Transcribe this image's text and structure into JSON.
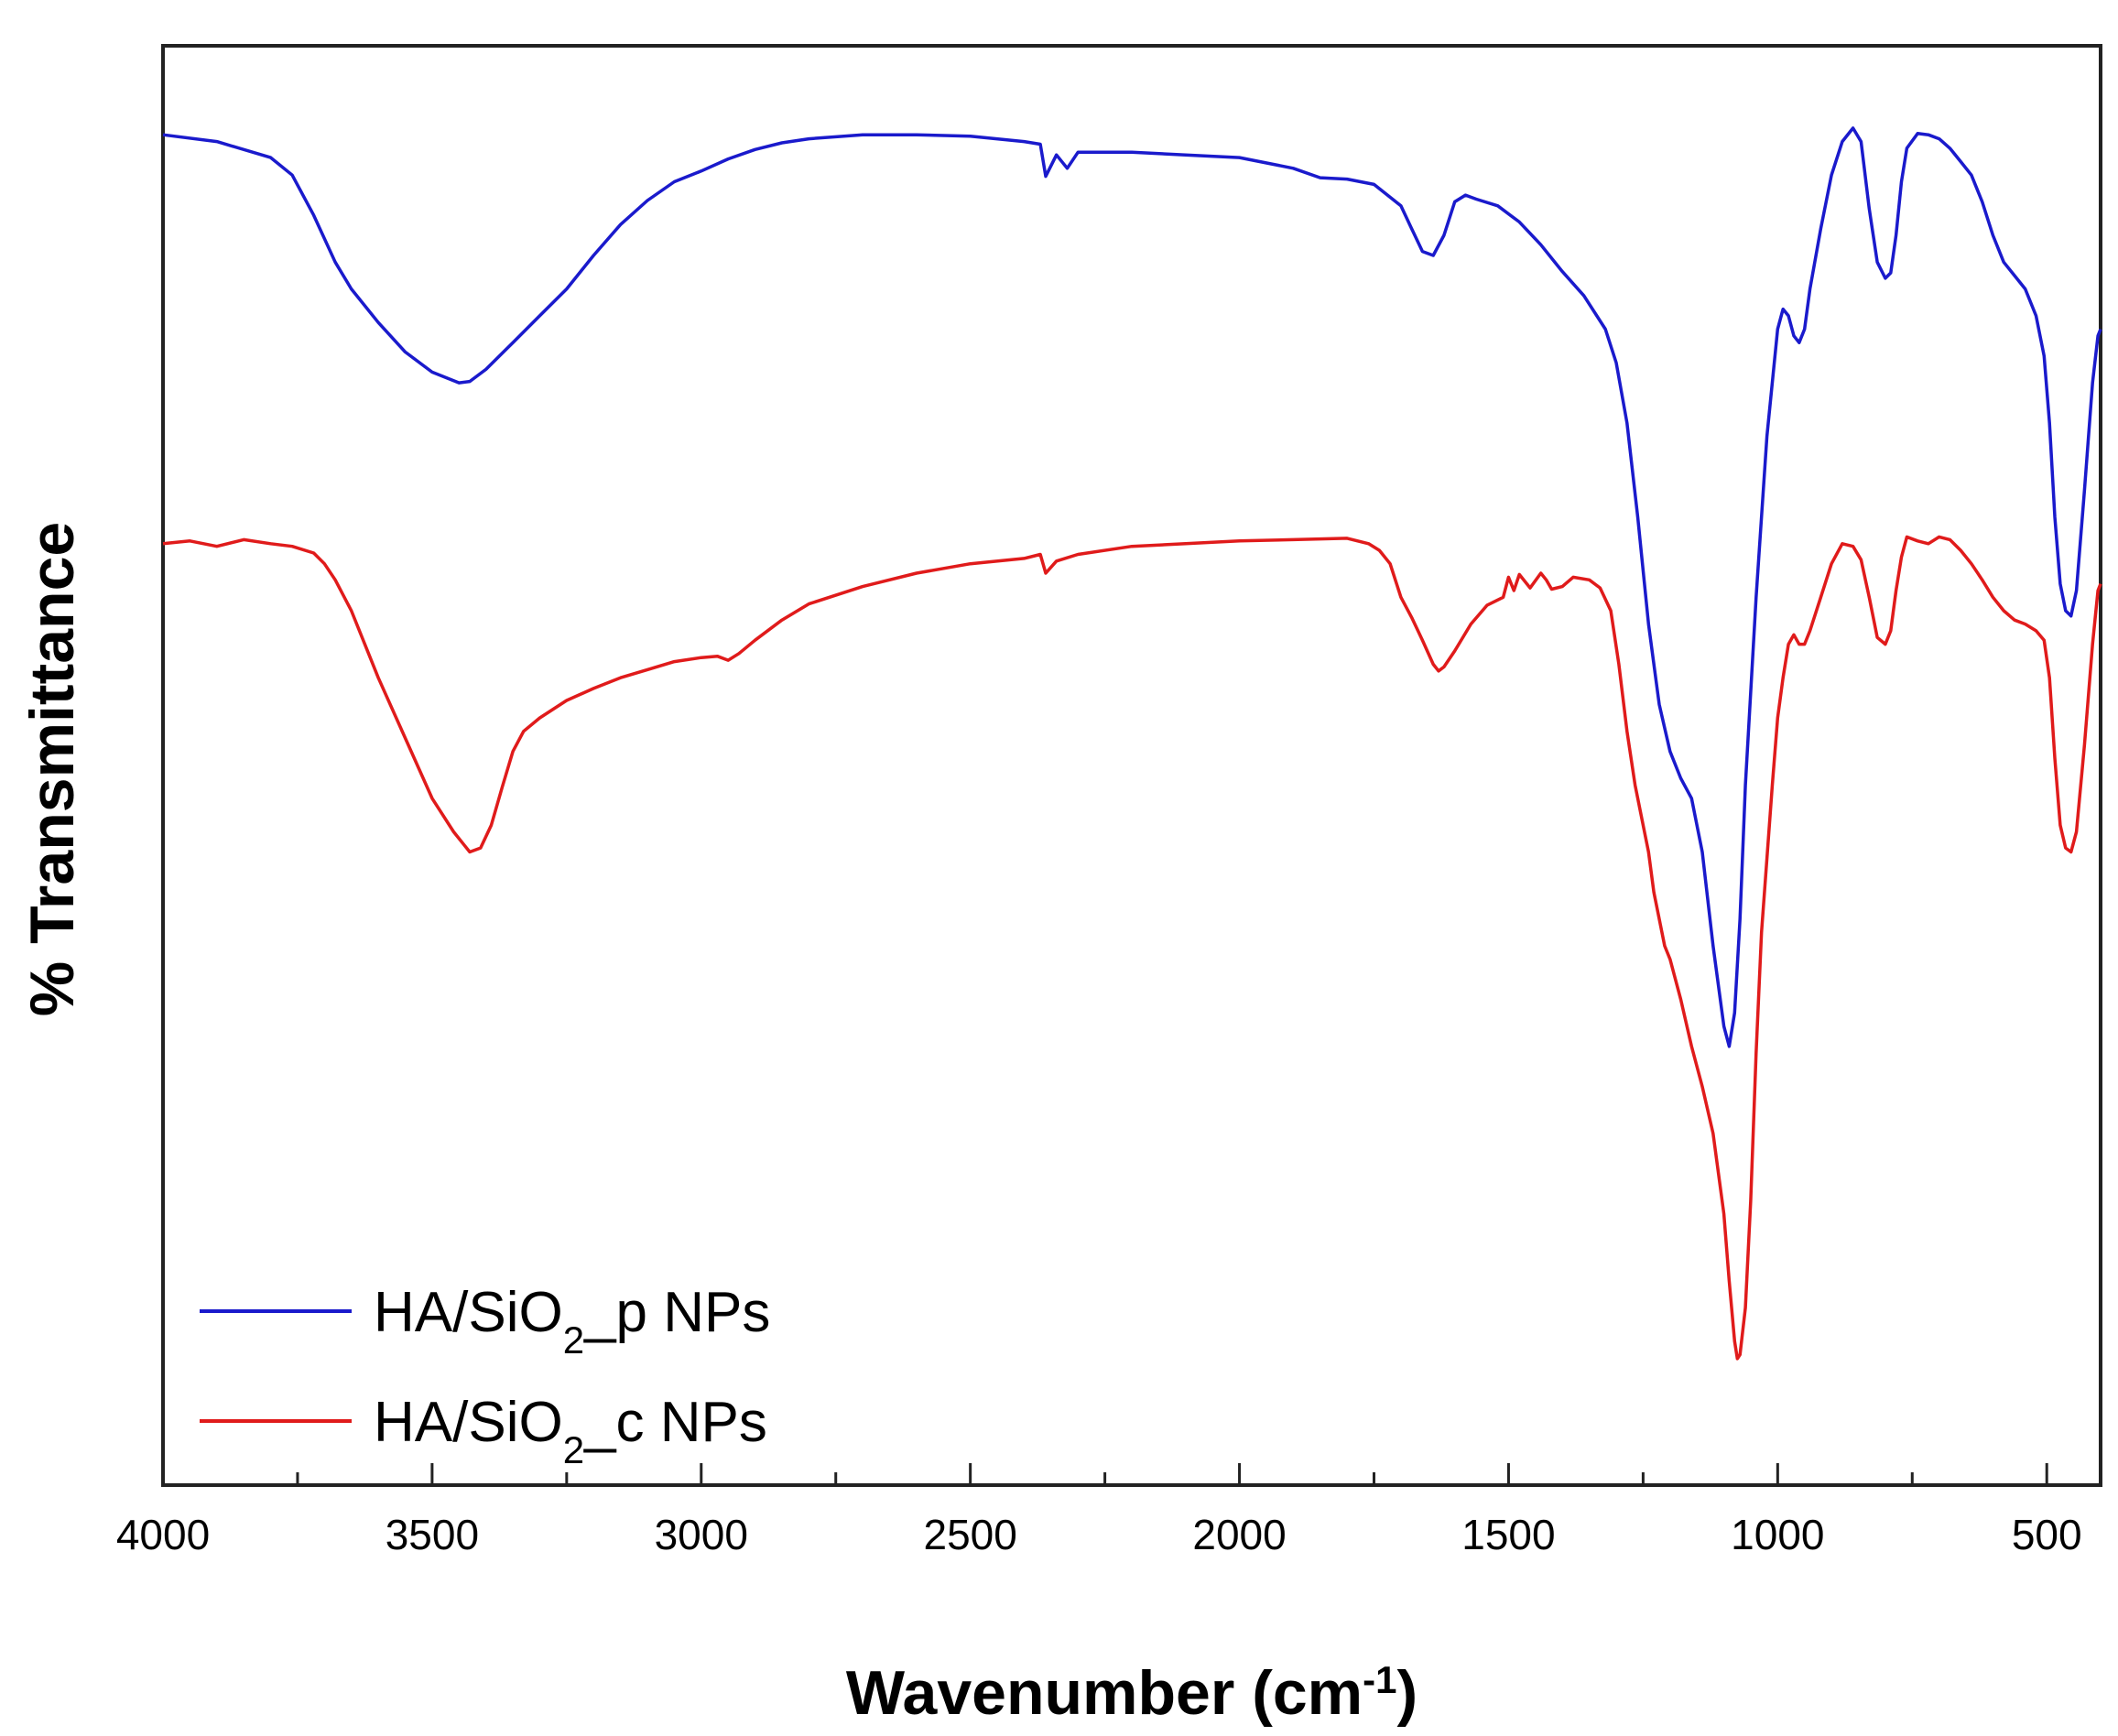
{
  "chart_data": {
    "type": "line",
    "xlabel": "Wavenumber (cm",
    "xlabel_sup": "-1",
    "xlabel_close": ")",
    "ylabel": "% Transmittance",
    "xlim": [
      4000,
      400
    ],
    "x_reversed": true,
    "ylim": [
      0,
      100
    ],
    "y_ticks_shown": false,
    "x_ticks": [
      4000,
      3500,
      3000,
      2500,
      2000,
      1500,
      1000,
      500
    ],
    "x_tick_labels": [
      "4000",
      "3500",
      "3000",
      "2500",
      "2000",
      "1500",
      "1000",
      "500"
    ],
    "x_minor_step": 250,
    "grid": false,
    "legend_position": "bottom-left",
    "series": [
      {
        "name": "HA/SiO_p NPs",
        "legend_main": "HA/SiO",
        "legend_sub": "2",
        "legend_tail": "_p NPs",
        "color": "#1a1acc",
        "x": [
          4000,
          3900,
          3800,
          3760,
          3720,
          3680,
          3650,
          3600,
          3550,
          3500,
          3450,
          3430,
          3400,
          3350,
          3300,
          3250,
          3200,
          3150,
          3100,
          3050,
          3000,
          2950,
          2900,
          2850,
          2800,
          2700,
          2600,
          2500,
          2400,
          2370,
          2360,
          2340,
          2320,
          2300,
          2200,
          2100,
          2000,
          1900,
          1850,
          1800,
          1750,
          1700,
          1680,
          1660,
          1640,
          1620,
          1600,
          1580,
          1560,
          1520,
          1480,
          1440,
          1400,
          1360,
          1320,
          1300,
          1280,
          1260,
          1240,
          1220,
          1200,
          1180,
          1160,
          1140,
          1120,
          1100,
          1090,
          1080,
          1070,
          1060,
          1040,
          1020,
          1000,
          990,
          980,
          970,
          960,
          950,
          940,
          920,
          900,
          880,
          860,
          845,
          830,
          815,
          800,
          790,
          780,
          770,
          760,
          740,
          720,
          700,
          680,
          660,
          640,
          620,
          600,
          580,
          560,
          540,
          520,
          505,
          495,
          485,
          475,
          465,
          455,
          445,
          430,
          415,
          405,
          400
        ],
        "y": [
          96.5,
          96.0,
          94.8,
          93.5,
          90.5,
          87.0,
          85.0,
          82.5,
          80.3,
          78.8,
          78.0,
          78.1,
          79.0,
          81.0,
          83.0,
          85.0,
          87.5,
          89.8,
          91.6,
          93.0,
          93.8,
          94.7,
          95.4,
          95.9,
          96.2,
          96.5,
          96.5,
          96.4,
          96.0,
          95.8,
          93.4,
          95.0,
          94.0,
          95.2,
          95.2,
          95.0,
          94.8,
          94.0,
          93.3,
          93.2,
          92.8,
          91.2,
          89.5,
          87.8,
          87.5,
          89.0,
          91.5,
          92.0,
          91.7,
          91.2,
          90.0,
          88.3,
          86.3,
          84.5,
          82.0,
          79.5,
          75.0,
          68.0,
          60.0,
          54.0,
          50.5,
          48.5,
          47.0,
          43.0,
          36.0,
          30.0,
          28.5,
          31.0,
          38.0,
          48.0,
          62.0,
          74.0,
          82.0,
          83.5,
          83.0,
          81.5,
          81.0,
          82.0,
          85.0,
          89.5,
          93.5,
          96.0,
          97.0,
          96.0,
          91.0,
          87.0,
          85.8,
          86.2,
          89.0,
          93.0,
          95.5,
          96.6,
          96.5,
          96.2,
          95.5,
          94.5,
          93.5,
          91.5,
          89.0,
          87.0,
          86.0,
          85.0,
          83.0,
          80.0,
          75.0,
          68.0,
          63.0,
          61.0,
          60.6,
          62.5,
          70.0,
          78.0,
          81.5,
          82.0
        ]
      },
      {
        "name": "HA/SiO_c NPs",
        "legend_main": "HA/SiO",
        "legend_sub": "2",
        "legend_tail": "_c NPs",
        "color": "#e01b1b",
        "x": [
          4000,
          3950,
          3900,
          3850,
          3800,
          3760,
          3720,
          3700,
          3680,
          3650,
          3600,
          3550,
          3500,
          3460,
          3430,
          3410,
          3390,
          3370,
          3350,
          3330,
          3300,
          3250,
          3200,
          3150,
          3100,
          3050,
          3000,
          2970,
          2950,
          2930,
          2900,
          2850,
          2800,
          2700,
          2600,
          2500,
          2400,
          2370,
          2360,
          2340,
          2300,
          2200,
          2100,
          2000,
          1900,
          1800,
          1760,
          1740,
          1720,
          1700,
          1680,
          1660,
          1640,
          1630,
          1620,
          1600,
          1570,
          1540,
          1510,
          1500,
          1490,
          1480,
          1460,
          1440,
          1430,
          1420,
          1400,
          1380,
          1350,
          1330,
          1310,
          1295,
          1280,
          1265,
          1250,
          1240,
          1230,
          1220,
          1210,
          1200,
          1180,
          1160,
          1140,
          1120,
          1100,
          1090,
          1080,
          1075,
          1070,
          1060,
          1050,
          1040,
          1030,
          1020,
          1010,
          1000,
          990,
          980,
          970,
          960,
          950,
          940,
          920,
          900,
          880,
          860,
          845,
          830,
          815,
          800,
          790,
          780,
          770,
          760,
          740,
          720,
          700,
          680,
          660,
          640,
          620,
          600,
          580,
          560,
          540,
          520,
          505,
          495,
          485,
          475,
          465,
          455,
          445,
          430,
          415,
          405,
          400
        ],
        "y": [
          66.0,
          66.2,
          65.8,
          66.3,
          66.0,
          65.8,
          65.3,
          64.5,
          63.3,
          61.0,
          56.0,
          51.5,
          47.0,
          44.5,
          43.0,
          43.3,
          45.0,
          47.8,
          50.5,
          52.0,
          53.0,
          54.3,
          55.2,
          56.0,
          56.6,
          57.2,
          57.5,
          57.6,
          57.3,
          57.8,
          58.8,
          60.3,
          61.5,
          62.8,
          63.8,
          64.5,
          64.9,
          65.2,
          63.8,
          64.7,
          65.2,
          65.8,
          66.0,
          66.2,
          66.3,
          66.4,
          66.0,
          65.5,
          64.5,
          62.0,
          60.5,
          58.8,
          57.0,
          56.5,
          56.8,
          58.0,
          60.0,
          61.4,
          62.0,
          63.5,
          62.5,
          63.7,
          62.7,
          63.8,
          63.3,
          62.6,
          62.8,
          63.5,
          63.3,
          62.7,
          61.0,
          57.0,
          52.0,
          48.0,
          45.0,
          43.0,
          40.0,
          38.0,
          36.0,
          35.0,
          32.0,
          28.5,
          25.5,
          22.0,
          16.0,
          11.0,
          6.5,
          5.2,
          5.5,
          9.0,
          17.0,
          28.0,
          37.0,
          42.5,
          48.0,
          53.0,
          56.0,
          58.5,
          59.2,
          58.5,
          58.5,
          59.5,
          62.0,
          64.5,
          66.0,
          65.8,
          64.8,
          62.0,
          59.0,
          58.5,
          59.5,
          62.5,
          65.0,
          66.5,
          66.2,
          66.0,
          66.5,
          66.3,
          65.5,
          64.5,
          63.3,
          62.0,
          61.0,
          60.3,
          60.0,
          59.5,
          58.8,
          56.0,
          50.0,
          45.0,
          43.3,
          43.0,
          44.5,
          51.0,
          58.5,
          62.5,
          63.0
        ]
      }
    ]
  }
}
